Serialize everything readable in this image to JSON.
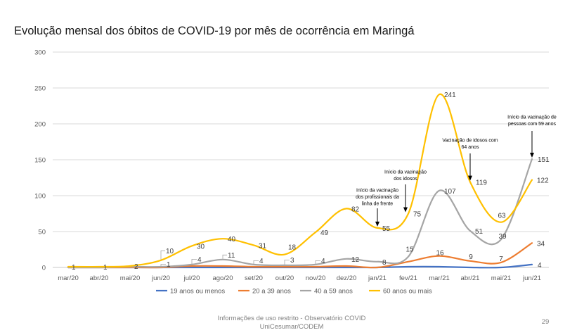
{
  "chart_data": {
    "type": "line",
    "title": "Evolução mensal dos óbitos de COVID-19 por mês de ocorrência em Maringá",
    "xlabel": "",
    "ylabel": "",
    "categories": [
      "mar/20",
      "abr/20",
      "mai/20",
      "jun/20",
      "jul/20",
      "ago/20",
      "set/20",
      "out/20",
      "nov/20",
      "dez/20",
      "jan/21",
      "fev/21",
      "mar/21",
      "abr/21",
      "mai/21",
      "jun/21"
    ],
    "ylim": [
      0,
      300
    ],
    "yticks": [
      0,
      50,
      100,
      150,
      200,
      250,
      300
    ],
    "grid": true,
    "legend_position": "bottom",
    "series": [
      {
        "name": "19 anos ou menos",
        "color": "#4472C4",
        "values": [
          0,
          0,
          0,
          0,
          0,
          0,
          0,
          0,
          0,
          0,
          0,
          1,
          1,
          0,
          0,
          4
        ],
        "labels": [
          null,
          null,
          null,
          null,
          null,
          null,
          null,
          null,
          null,
          null,
          null,
          null,
          null,
          null,
          null,
          "4"
        ]
      },
      {
        "name": "20 a 39 anos",
        "color": "#ED7D31",
        "values": [
          0,
          0,
          0,
          0,
          2,
          2,
          1,
          1,
          1,
          2,
          0,
          8,
          16,
          9,
          7,
          34
        ],
        "labels": [
          null,
          null,
          null,
          null,
          null,
          null,
          null,
          null,
          null,
          null,
          null,
          null,
          "16",
          "9",
          "7",
          "34"
        ]
      },
      {
        "name": "40 a 59 anos",
        "color": "#A5A5A5",
        "values": [
          0,
          0,
          1,
          1,
          4,
          11,
          4,
          3,
          4,
          12,
          8,
          15,
          107,
          51,
          39,
          151
        ],
        "labels": [
          null,
          null,
          null,
          "1",
          "4",
          "11",
          "4",
          "3",
          "4",
          "12",
          "8",
          "15",
          "107",
          "51",
          "39",
          "151"
        ]
      },
      {
        "name": "60 anos ou mais",
        "color": "#FFC000",
        "values": [
          1,
          1,
          2,
          10,
          30,
          40,
          31,
          18,
          49,
          82,
          55,
          75,
          241,
          119,
          63,
          122
        ],
        "labels": [
          "1",
          "1",
          "2",
          "10",
          "30",
          "40",
          "31",
          "18",
          "49",
          "82",
          "55",
          "75",
          "241",
          "119",
          "63",
          "122"
        ]
      }
    ],
    "annotations": [
      {
        "x": "jan/21",
        "y": 55,
        "lines": [
          "Início da vacinação",
          "dos profissionais da",
          "linha de frente"
        ]
      },
      {
        "x": "fev/21",
        "y": 75,
        "lines": [
          "Início da vacinação",
          "dos idosos"
        ]
      },
      {
        "x": "abr/21",
        "y": 119,
        "lines": [
          "Vacinação de idosos com",
          "64 anos"
        ]
      },
      {
        "x": "jun/21",
        "y": 151,
        "lines": [
          "Início da vacinação de",
          "pessoas com 59 anos"
        ]
      }
    ]
  },
  "slide": {
    "footer_line1": "Informações de uso restrito - Observatório COVID",
    "footer_line2": "UniCesumar/CODEM",
    "page_number": "29"
  }
}
